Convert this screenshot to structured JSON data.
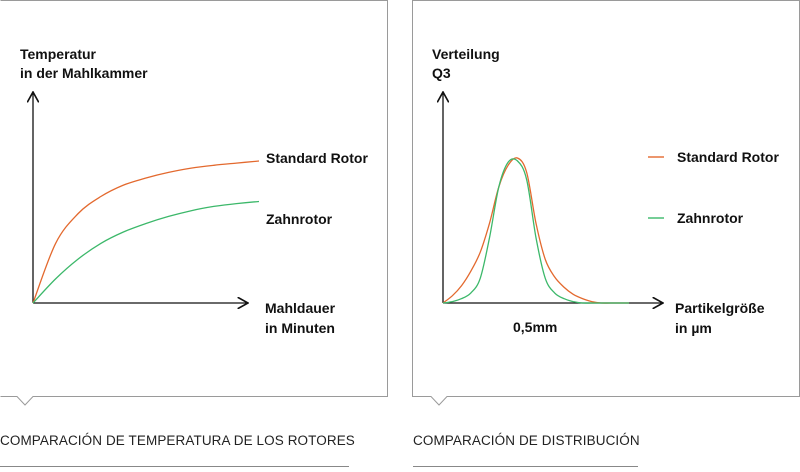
{
  "colors": {
    "standard": "#e3692e",
    "zahn": "#3cb86a",
    "axis": "#111111",
    "frame": "#9a9a9a",
    "rule": "#888888"
  },
  "captions": {
    "left": "COMPARACIÓN DE TEMPERATURA DE LOS ROTORES",
    "right": "COMPARACIÓN DE DISTRIBUCIÓN"
  },
  "chart_data": [
    {
      "type": "line",
      "ylabel": [
        "Temperatur",
        "in der Mahlkammer"
      ],
      "xlabel": [
        "Mahldauer",
        "in Minuten"
      ],
      "x": [
        0,
        1,
        2,
        3,
        4,
        5,
        6,
        7,
        8,
        9,
        10
      ],
      "series": [
        {
          "name": "Standard Rotor",
          "color": "#e3692e",
          "values": [
            0,
            0.42,
            0.63,
            0.75,
            0.83,
            0.88,
            0.92,
            0.95,
            0.97,
            0.985,
            1.0
          ]
        },
        {
          "name": "Zahnrotor",
          "color": "#3cb86a",
          "values": [
            0,
            0.17,
            0.31,
            0.42,
            0.5,
            0.56,
            0.61,
            0.65,
            0.68,
            0.7,
            0.715
          ]
        }
      ]
    },
    {
      "type": "line",
      "ylabel": [
        "Verteilung",
        "Q3"
      ],
      "xlabel": [
        "Partikelgröße",
        "in µm"
      ],
      "tick_labels": [
        "0,5mm"
      ],
      "legend_position": "right",
      "x": [
        0,
        0.05,
        0.1,
        0.15,
        0.2,
        0.25,
        0.3,
        0.35,
        0.4,
        0.45,
        0.5,
        0.55,
        0.6,
        0.65,
        0.7,
        0.75,
        0.8,
        0.85,
        0.9,
        0.95,
        1.0
      ],
      "series": [
        {
          "name": "Standard Rotor",
          "color": "#e3692e",
          "values": [
            0,
            0.05,
            0.12,
            0.22,
            0.35,
            0.55,
            0.8,
            0.95,
            1.0,
            0.9,
            0.55,
            0.3,
            0.18,
            0.11,
            0.06,
            0.03,
            0.01,
            0,
            0,
            0,
            0
          ]
        },
        {
          "name": "Zahnrotor",
          "color": "#3cb86a",
          "values": [
            0,
            0.01,
            0.03,
            0.07,
            0.17,
            0.45,
            0.8,
            0.97,
            0.98,
            0.85,
            0.45,
            0.17,
            0.07,
            0.03,
            0.01,
            0,
            0,
            0,
            0,
            0,
            0
          ]
        }
      ]
    }
  ]
}
